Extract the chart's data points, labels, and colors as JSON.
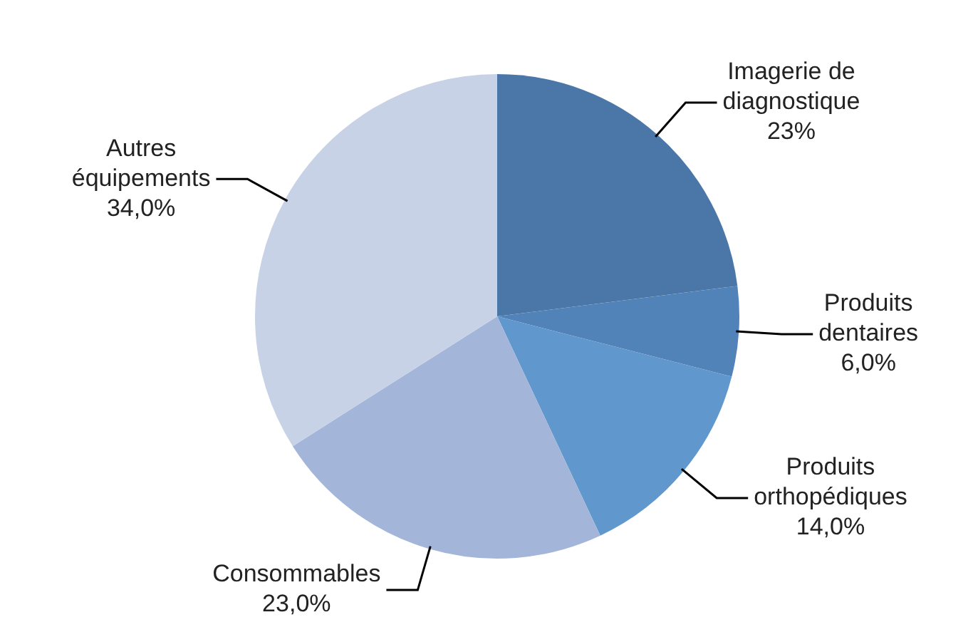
{
  "chart_data": {
    "type": "pie",
    "categories": [
      "Imagerie de diagnostique",
      "Produits dentaires",
      "Produits orthopédiques",
      "Consommables",
      "Autres équipements"
    ],
    "values": [
      23,
      6,
      14,
      23,
      34
    ],
    "value_labels": [
      "23%",
      "6,0%",
      "14,0%",
      "23,0%",
      "34,0%"
    ],
    "colors": [
      "#4a76a8",
      "#5283b8",
      "#6097cc",
      "#a3b6d9",
      "#c8d2e6"
    ],
    "legend": false
  }
}
